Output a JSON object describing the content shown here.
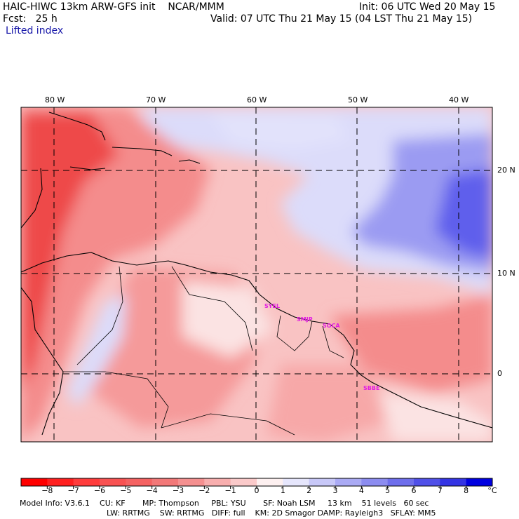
{
  "header": {
    "model_title": "HAIC-HIWC 13km ARW-GFS init",
    "institution": "NCAR/MMM",
    "init": "Init: 06 UTC Wed 20 May 15",
    "fcst_label": "Fcst:",
    "fcst_value": "25 h",
    "valid": "Valid: 07 UTC Thu 21 May 15 (04 LST Thu 21 May 15)",
    "field": "Lifted index"
  },
  "map": {
    "lon_labels": [
      "80 W",
      "70 W",
      "60 W",
      "50 W",
      "40 W"
    ],
    "lat_labels": [
      "20 N",
      "10 N",
      "0"
    ],
    "stations": [
      "SYEL",
      "SMJP",
      "SOCA",
      "SBBE"
    ],
    "colors": {
      "strong_neg": "#ee4a4a",
      "neg": "#f48c8c",
      "weak_neg": "#f9c3c3",
      "near_zero": "#fbe3e3",
      "weak_pos": "#dcdcfa",
      "pos": "#9b9bf2",
      "strong_pos": "#5e5eec"
    }
  },
  "colorbar": {
    "labels": [
      "−8",
      "−7",
      "−6",
      "−5",
      "−4",
      "−3",
      "−2",
      "−1",
      "0",
      "1",
      "2",
      "3",
      "4",
      "5",
      "6",
      "7",
      "8"
    ],
    "unit": "°C",
    "colors": [
      "#ff0000",
      "#ff2020",
      "#ff3c3c",
      "#f85252",
      "#f46262",
      "#f27878",
      "#f59090",
      "#f8aeae",
      "#fbcaca",
      "#fdf0f0",
      "#e6e6fc",
      "#c8c8f8",
      "#aaaaf4",
      "#8c8cf0",
      "#6e6eec",
      "#5050e8",
      "#3434e4",
      "#0000e0"
    ]
  },
  "footer": {
    "line1": "Model Info: V3.6.1    CU: KF       MP: Thompson     PBL: YSU       SF: Noah LSM     13 km    51 levels   60 sec",
    "line2": "LW: RRTMG    SW: RRTMG   DIFF: full    KM: 2D Smagor DAMP: Rayleigh3   SFLAY: MM5"
  }
}
